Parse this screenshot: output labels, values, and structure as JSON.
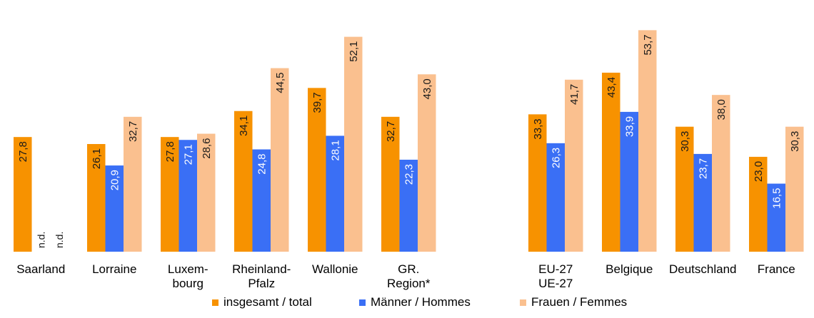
{
  "chart_data": {
    "type": "bar",
    "categories": [
      [
        "Saarland"
      ],
      [
        "Lorraine"
      ],
      [
        "Luxem-",
        "bourg"
      ],
      [
        "Rheinland-",
        "Pfalz"
      ],
      [
        "Wallonie"
      ],
      [
        "GR.",
        "Region*"
      ],
      [
        "EU-27",
        "UE-27"
      ],
      [
        "Belgique"
      ],
      [
        "Deutschland"
      ],
      [
        "France"
      ]
    ],
    "series": [
      {
        "name": "insgesamt / total",
        "color": "#F79200",
        "values": [
          27.8,
          26.1,
          27.8,
          34.1,
          39.7,
          32.7,
          33.3,
          43.4,
          30.3,
          23.0
        ],
        "labels": [
          "27,8",
          "26,1",
          "27,8",
          "34,1",
          "39,7",
          "32,7",
          "33,3",
          "43,4",
          "30,3",
          "23,0"
        ]
      },
      {
        "name": "Männer / Hommes",
        "color": "#3A6FF5",
        "values": [
          null,
          20.9,
          27.1,
          24.8,
          28.1,
          22.3,
          26.3,
          33.9,
          23.7,
          16.5
        ],
        "labels": [
          "n.d.",
          "20,9",
          "27,1",
          "24,8",
          "28,1",
          "22,3",
          "26,3",
          "33,9",
          "23,7",
          "16,5"
        ]
      },
      {
        "name": "Frauen / Femmes",
        "color": "#FAC08F",
        "values": [
          null,
          32.7,
          28.6,
          44.5,
          52.1,
          43.0,
          41.7,
          53.7,
          38.0,
          30.3
        ],
        "labels": [
          "n.d.",
          "32,7",
          "28,6",
          "44,5",
          "52,1",
          "43,0",
          "41,7",
          "53,7",
          "38,0",
          "30,3"
        ]
      }
    ],
    "ylim": [
      0,
      55
    ],
    "grid": false,
    "legend_position": "bottom"
  }
}
